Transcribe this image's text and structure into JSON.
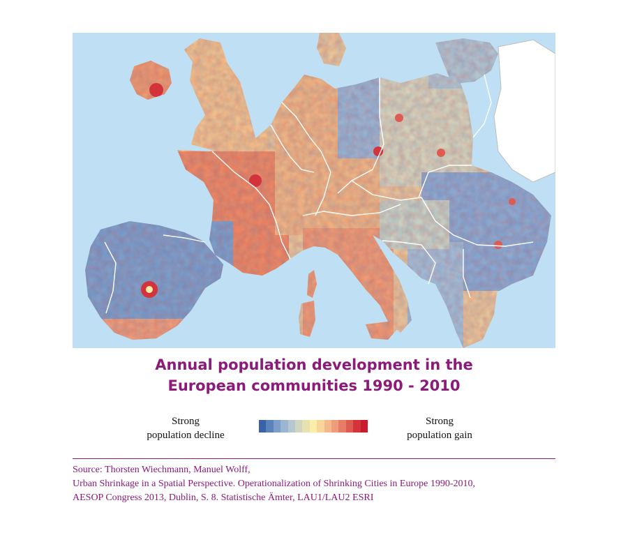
{
  "title": {
    "line1": "Annual population development in the",
    "line2": "European communities 1990 - 2010"
  },
  "legend": {
    "left_line1": "Strong",
    "left_line2": "population decline",
    "right_line1": "Strong",
    "right_line2": "population gain",
    "scale_colors": [
      "#3a62a8",
      "#5a82bb",
      "#7c9ec9",
      "#9bb6d2",
      "#b6c8cf",
      "#d0d6c2",
      "#e8e2b0",
      "#fbefa8",
      "#f8d59a",
      "#f3b98a",
      "#ee9c79",
      "#e77d67",
      "#de5b52",
      "#d3343c",
      "#c81c2d"
    ]
  },
  "source": {
    "line1": "Source: Thorsten Wiechmann, Manuel Wolff,",
    "line2": "Urban Shrinkage in a Spatial Perspective. Operationalization of Shrinking Cities in Europe 1990-2010,",
    "line3": "AESOP Congress 2013, Dublin, S. 8. Statistische Ämter, LAU1/LAU2 ESRI"
  },
  "colors": {
    "accent": "#8b1a7a",
    "sea": "#bfe0f4",
    "no_data": "#ffffff",
    "border": "#ffffff"
  }
}
